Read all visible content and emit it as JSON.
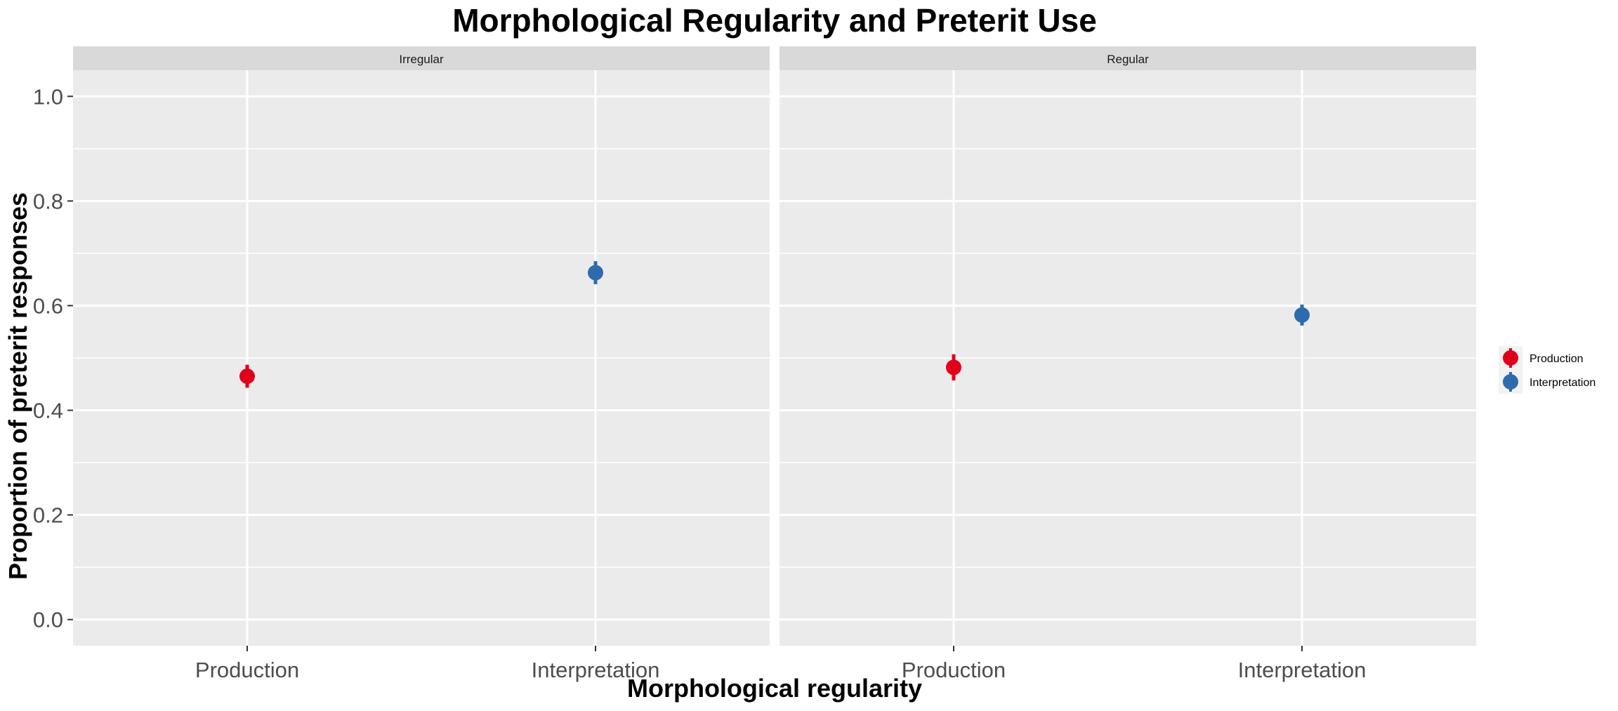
{
  "chart_data": {
    "type": "scatter",
    "title": "Morphological Regularity and Preterit Use",
    "xlabel": "Morphological regularity",
    "ylabel": "Proportion of preterit responses",
    "ylim": [
      -0.05,
      1.05
    ],
    "yticks": [
      "0.0",
      "0.2",
      "0.4",
      "0.6",
      "0.8",
      "1.0"
    ],
    "categories": [
      "Production",
      "Interpretation"
    ],
    "panels": [
      {
        "name": "Irregular",
        "points": [
          {
            "category": "Production",
            "series": "Production",
            "y": 0.465,
            "ymin": 0.443,
            "ymax": 0.487
          },
          {
            "category": "Interpretation",
            "series": "Interpretation",
            "y": 0.663,
            "ymin": 0.641,
            "ymax": 0.685
          }
        ]
      },
      {
        "name": "Regular",
        "points": [
          {
            "category": "Production",
            "series": "Production",
            "y": 0.482,
            "ymin": 0.457,
            "ymax": 0.507
          },
          {
            "category": "Interpretation",
            "series": "Interpretation",
            "y": 0.582,
            "ymin": 0.562,
            "ymax": 0.602
          }
        ]
      }
    ],
    "legend": {
      "position": "right",
      "items": [
        {
          "name": "Production",
          "color": "#E0001B"
        },
        {
          "name": "Interpretation",
          "color": "#2E6BAD"
        }
      ]
    },
    "grid": true
  }
}
